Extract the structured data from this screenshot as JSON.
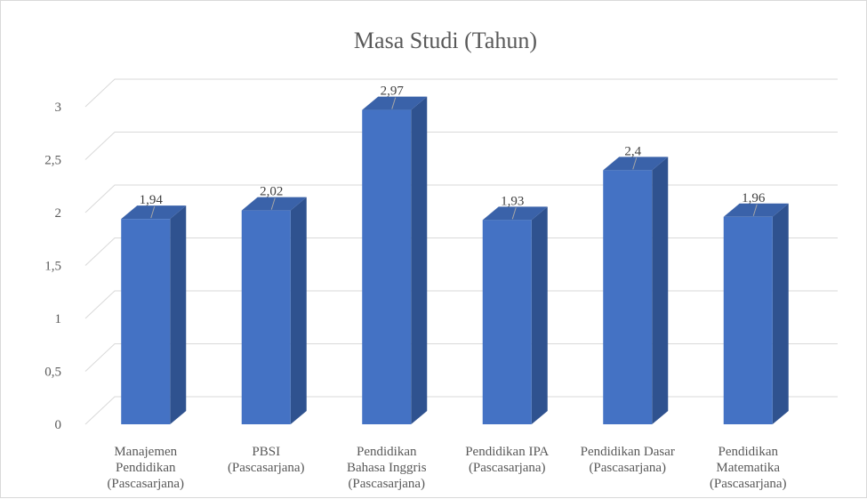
{
  "chart_data": {
    "type": "bar",
    "title": "Masa Studi (Tahun)",
    "categories": [
      [
        "Manajemen",
        "Pendidikan",
        "(Pascasarjana)"
      ],
      [
        "PBSI",
        "(Pascasarjana)"
      ],
      [
        "Pendidikan",
        "Bahasa Inggris",
        "(Pascasarjana)"
      ],
      [
        "Pendidikan IPA",
        "(Pascasarjana)"
      ],
      [
        "Pendidikan Dasar",
        "(Pascasarjana)"
      ],
      [
        "Pendidikan",
        "Matematika",
        "(Pascasarjana)"
      ]
    ],
    "values": [
      1.94,
      2.02,
      2.97,
      1.93,
      2.4,
      1.96
    ],
    "data_labels": [
      "1,94",
      "2,02",
      "2,97",
      "1,93",
      "2,4",
      "1,96"
    ],
    "yticks": [
      0,
      0.5,
      1,
      1.5,
      2,
      2.5,
      3
    ],
    "ytick_labels": [
      "0",
      "0,5",
      "1",
      "1,5",
      "2",
      "2,5",
      "3"
    ],
    "ylim": [
      0,
      3
    ],
    "grid": true,
    "legend": "none",
    "colors": {
      "bar_front": "#4472c4",
      "bar_side": "#2f528f",
      "bar_top": "#3a62a9"
    }
  }
}
